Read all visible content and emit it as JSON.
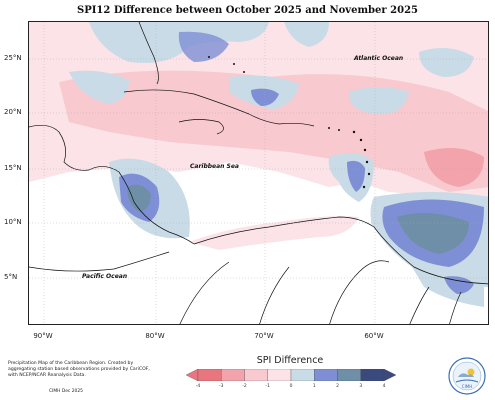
{
  "title": "SPI12 Difference between October 2025 and November 2025",
  "latitudes": [
    "25°N",
    "20°N",
    "15°N",
    "10°N",
    "5°N"
  ],
  "longitudes": [
    "90°W",
    "80°W",
    "70°W",
    "60°W"
  ],
  "labels": {
    "atlantic": "Atlantic Ocean",
    "caribbean": "Caribbean Sea",
    "pacific": "Pacific Ocean"
  },
  "caption": "Precipitation Map of the Caribbean Region. Created by aggregating station based observations provided by CariCOF, with NCEP/NCAR Reanalysis Data.",
  "credit": "CIMH Dec 2025",
  "legend": {
    "title": "SPI Difference",
    "ticks": [
      "-4",
      "-3",
      "-2",
      "-1",
      "0",
      "1",
      "2",
      "3",
      "4"
    ],
    "colors": [
      "#e9767f",
      "#f2a3ab",
      "#f8c9cf",
      "#fbe3e7",
      "#ffffff",
      "#c9dbe6",
      "#7f8fd6",
      "#6f8fa8",
      "#3b4a7e"
    ]
  },
  "logo": {
    "text": "CIMH",
    "icon": "cimh-logo-icon"
  }
}
